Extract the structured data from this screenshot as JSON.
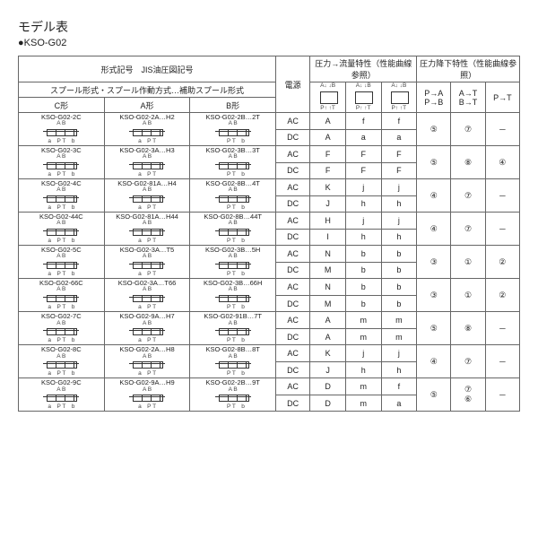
{
  "title": "モデル表",
  "subtitle": "●KSO-G02",
  "headers": {
    "type_jis": "形式記号　JIS油圧図記号",
    "spool": "スプール形式・スプール作動方式…補助スプール形式",
    "c_type": "C形",
    "a_type": "A形",
    "b_type": "B形",
    "power": "電源",
    "pressure_flow": "圧力→流量特性（性能曲線参照）",
    "pressure_drop": "圧力降下特性（性能曲線参照）",
    "ab": "A B",
    "pt": "P T",
    "pa": "P→A",
    "pb": "P→B",
    "at": "A→T",
    "bt": "B→T",
    "ptcol": "P→T"
  },
  "hdr_sym_top": "A↓ ↓B",
  "hdr_sym_bot": "P↑ ↑T",
  "rows": [
    {
      "c": "KSO-G02-2C",
      "a": "KSO-G02-2A…H2",
      "b": "KSO-G02-2B…2T",
      "ac": [
        "A",
        "f",
        "f"
      ],
      "dc": [
        "A",
        "a",
        "a"
      ],
      "pa": "⑤",
      "at": "⑦",
      "pt": "－"
    },
    {
      "c": "KSO-G02-3C",
      "a": "KSO-G02-3A…H3",
      "b": "KSO-G02-3B…3T",
      "ac": [
        "F",
        "F",
        "F"
      ],
      "dc": [
        "F",
        "F",
        "F"
      ],
      "pa": "⑤",
      "at": "⑧",
      "pt": "④"
    },
    {
      "c": "KSO-G02-4C",
      "a": "KSO-G02-81A…H4",
      "b": "KSO-G02-8B…4T",
      "ac": [
        "K",
        "j",
        "j"
      ],
      "dc": [
        "J",
        "h",
        "h"
      ],
      "pa": "④",
      "at": "⑦",
      "pt": "－"
    },
    {
      "c": "KSO-G02-44C",
      "a": "KSO-G02-81A…H44",
      "b": "KSO-G02-8B…44T",
      "ac": [
        "H",
        "j",
        "j"
      ],
      "dc": [
        "I",
        "h",
        "h"
      ],
      "pa": "④",
      "at": "⑦",
      "pt": "－"
    },
    {
      "c": "KSO-G02-5C",
      "a": "KSO-G02-3A…T5",
      "b": "KSO-G02-3B…5H",
      "ac": [
        "N",
        "b",
        "b"
      ],
      "dc": [
        "M",
        "b",
        "b"
      ],
      "pa": "③",
      "at": "①",
      "pt": "②"
    },
    {
      "c": "KSO-G02-66C",
      "a": "KSO-G02-3A…T66",
      "b": "KSO-G02-3B…66H",
      "ac": [
        "N",
        "b",
        "b"
      ],
      "dc": [
        "M",
        "b",
        "b"
      ],
      "pa": "③",
      "at": "①",
      "pt": "②"
    },
    {
      "c": "KSO-G02-7C",
      "a": "KSO-G02-9A…H7",
      "b": "KSO-G02-91B…7T",
      "ac": [
        "A",
        "m",
        "m"
      ],
      "dc": [
        "A",
        "m",
        "m"
      ],
      "pa": "⑤",
      "at": "⑧",
      "pt": "－"
    },
    {
      "c": "KSO-G02-8C",
      "a": "KSO-G02-2A…H8",
      "b": "KSO-G02-8B…8T",
      "ac": [
        "K",
        "j",
        "j"
      ],
      "dc": [
        "J",
        "h",
        "h"
      ],
      "pa": "④",
      "at": "⑦",
      "pt": "－"
    },
    {
      "c": "KSO-G02-9C",
      "a": "KSO-G02-9A…H9",
      "b": "KSO-G02-2B…9T",
      "ac": [
        "D",
        "m",
        "f"
      ],
      "dc": [
        "D",
        "m",
        "a"
      ],
      "pa": "⑤",
      "at": "⑦<br>⑥",
      "pt": "－"
    }
  ],
  "power_labels": {
    "ac": "AC",
    "dc": "DC"
  },
  "sub_labels": {
    "ab": "A B",
    "pt": "P T",
    "apt": "a　P T",
    "ptb": "P T　b"
  }
}
